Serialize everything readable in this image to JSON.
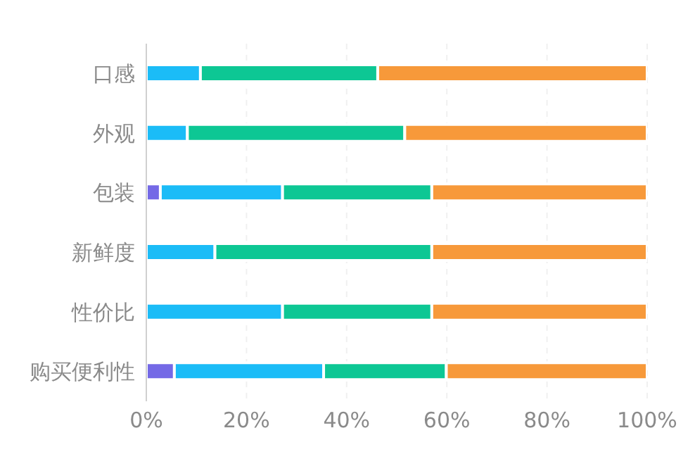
{
  "chart_data": {
    "type": "bar",
    "orientation": "horizontal",
    "stacked": true,
    "categories": [
      "口感",
      "外观",
      "包装",
      "新鲜度",
      "性价比",
      "购买便利性"
    ],
    "series": [
      {
        "color": "#7469e6",
        "values": [
          0,
          0,
          2.8,
          0,
          0,
          5.6
        ]
      },
      {
        "color": "#1bbcf7",
        "values": [
          10.8,
          8.2,
          24.4,
          13.7,
          27.2,
          29.8
        ]
      },
      {
        "color": "#0dc794",
        "values": [
          35.4,
          43.4,
          29.8,
          43.3,
          29.8,
          24.5
        ]
      },
      {
        "color": "#f7993a",
        "values": [
          53.8,
          48.4,
          43,
          43,
          43,
          40.1
        ]
      }
    ],
    "xlim": [
      0,
      100
    ],
    "xticks": [
      {
        "value": 0,
        "label": "0%"
      },
      {
        "value": 20,
        "label": "20%"
      },
      {
        "value": 40,
        "label": "40%"
      },
      {
        "value": 60,
        "label": "60%"
      },
      {
        "value": 80,
        "label": "80%"
      },
      {
        "value": 100,
        "label": "100%"
      }
    ],
    "grid": "x",
    "legend": false
  }
}
